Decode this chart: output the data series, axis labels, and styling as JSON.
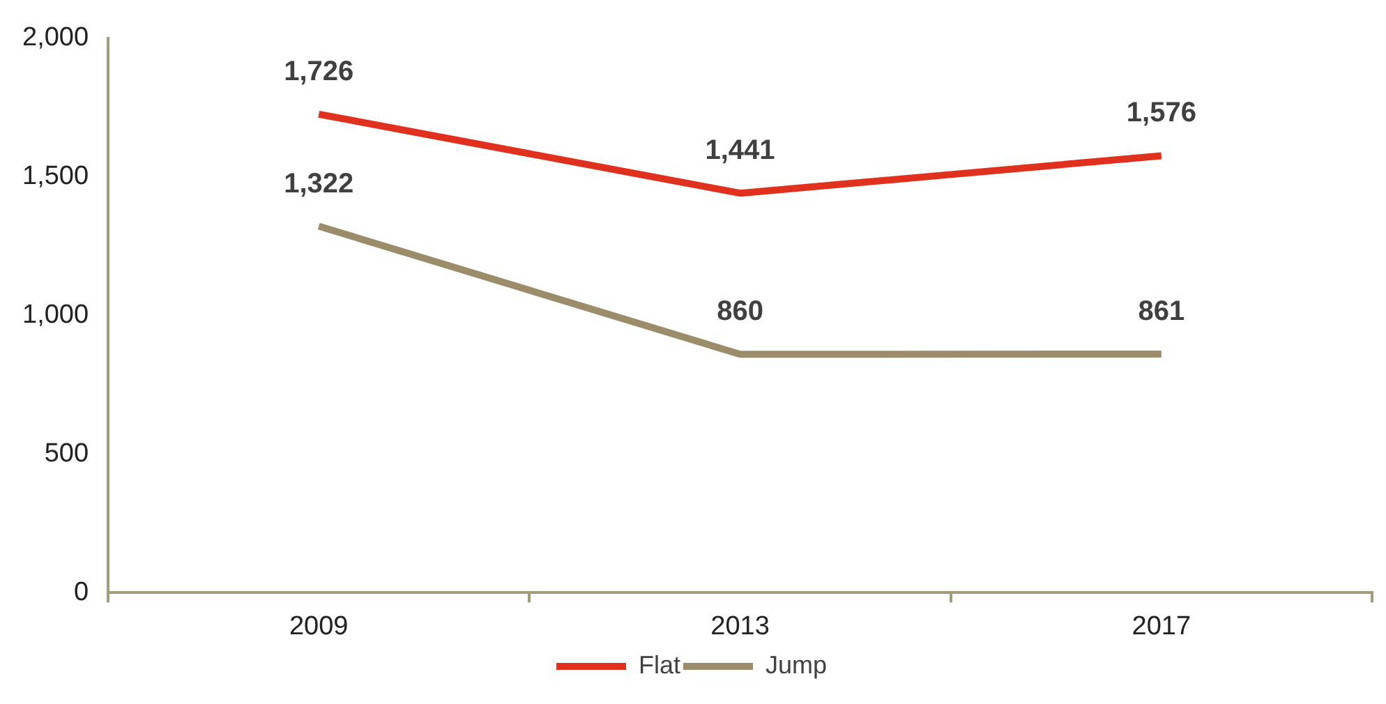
{
  "chart_data": {
    "type": "line",
    "categories": [
      "2009",
      "2013",
      "2017"
    ],
    "series": [
      {
        "name": "Flat",
        "color": "#e0301e",
        "values": [
          1726,
          1441,
          1576
        ],
        "value_labels": [
          "1,726",
          "1,441",
          "1,576"
        ]
      },
      {
        "name": "Jump",
        "color": "#9b8c6a",
        "values": [
          1322,
          860,
          861
        ],
        "value_labels": [
          "1,322",
          "860",
          "861"
        ]
      }
    ],
    "ylim": [
      0,
      2000
    ],
    "yticks": [
      0,
      500,
      {
        "value": 1000,
        "label": "1,000"
      },
      {
        "value": 1500,
        "label": "1,500"
      },
      {
        "value": 2000,
        "label": "2,000"
      }
    ],
    "legend": "bottom",
    "marker": "none",
    "line_style": "solid"
  }
}
